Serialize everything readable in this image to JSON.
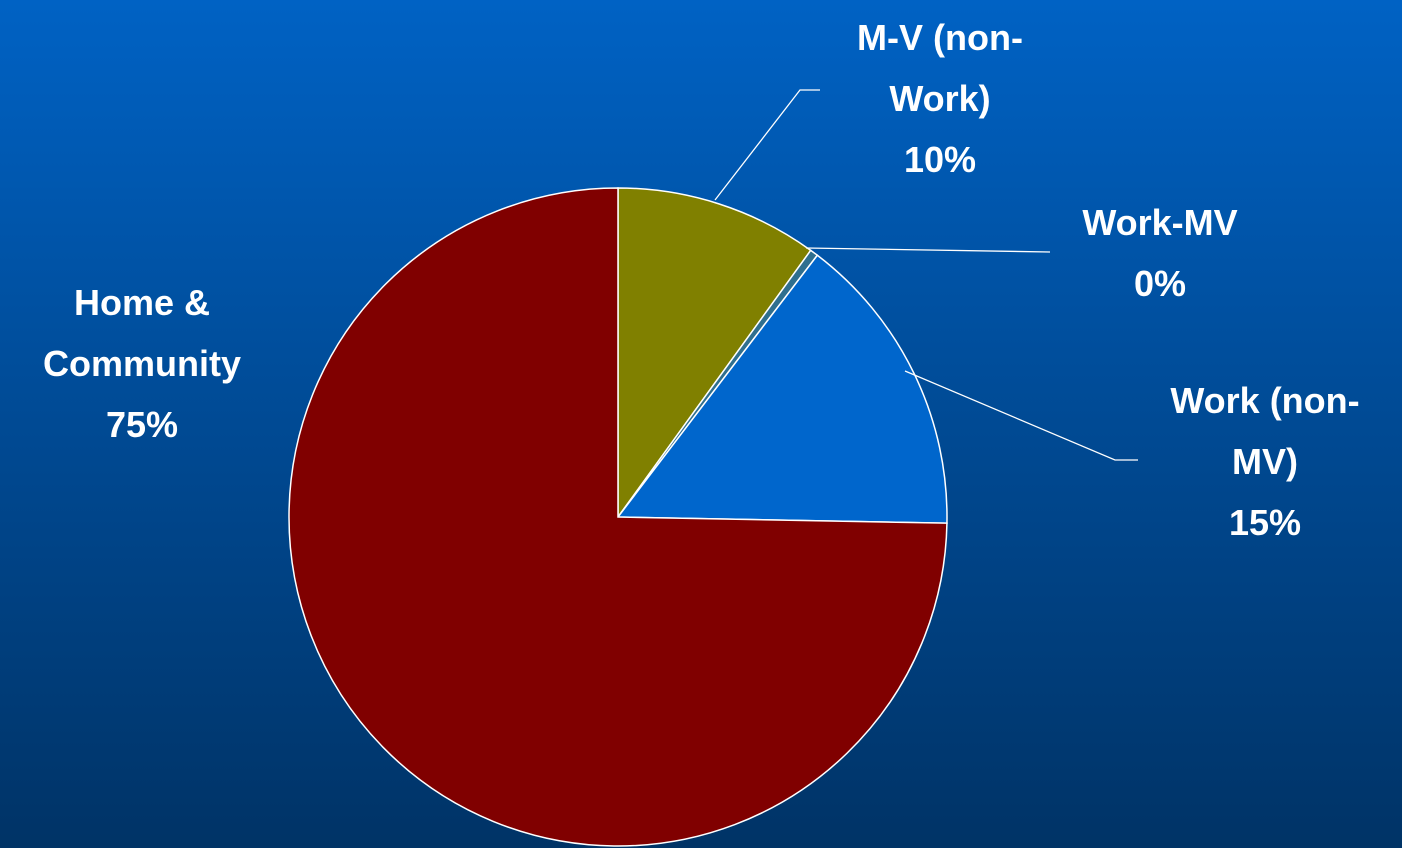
{
  "chart_data": {
    "type": "pie",
    "categories": [
      "M-V (non-Work)",
      "Work-MV",
      "Work (non-MV)",
      "Home & Community"
    ],
    "values": [
      10,
      0.4,
      15,
      75
    ],
    "value_labels": [
      "10%",
      "0%",
      "15%",
      "75%"
    ],
    "colors": [
      "#808000",
      "#2f6f8f",
      "#0066cc",
      "#800000"
    ]
  }
}
